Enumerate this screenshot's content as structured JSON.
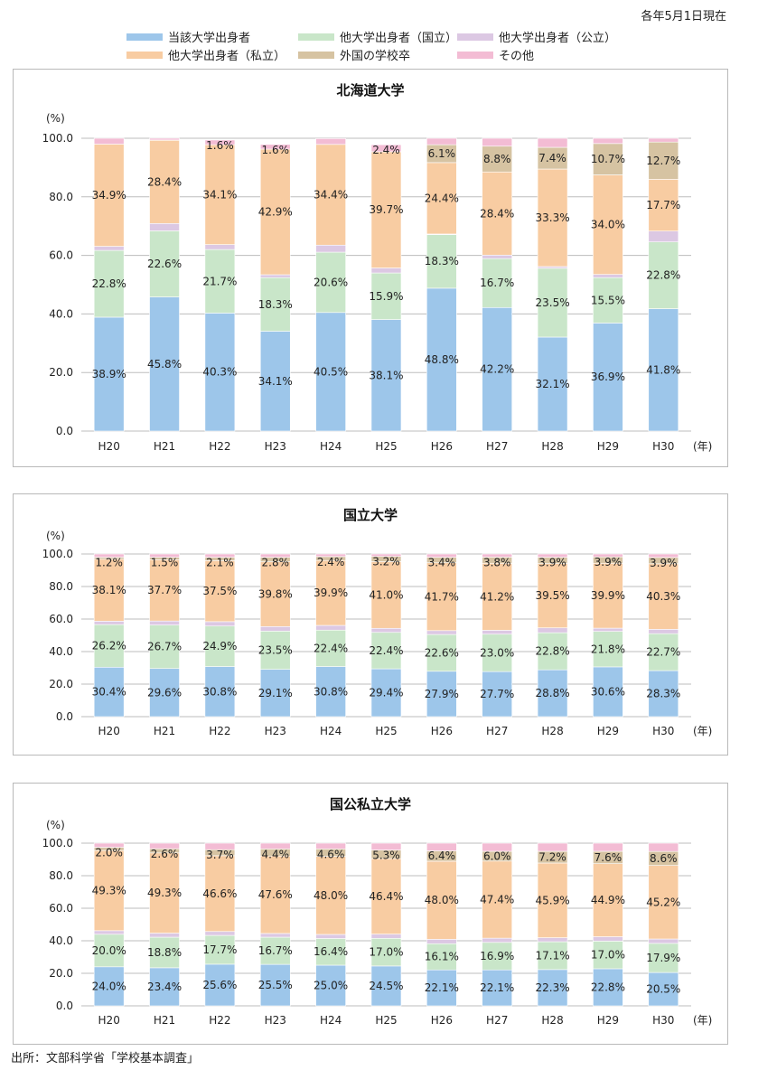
{
  "note": "各年5月1日現在",
  "source": "出所：文部科学省「学校基本調査」",
  "legend": [
    {
      "label": "当該大学出身者",
      "color": "#9dc6ea"
    },
    {
      "label": "他大学出身者（国立）",
      "color": "#c9e6c9"
    },
    {
      "label": "他大学出身者（公立）",
      "color": "#dcc8e3"
    },
    {
      "label": "他大学出身者（私立）",
      "color": "#f8cca2"
    },
    {
      "label": "外国の学校卒",
      "color": "#d6c3a2"
    },
    {
      "label": "その他",
      "color": "#f3bcd4"
    }
  ],
  "chart_data": [
    {
      "type": "bar",
      "stacked": true,
      "title": "北海道大学",
      "ylabel": "(%)",
      "xunit": "(年)",
      "ylim": [
        0,
        100
      ],
      "yticks": [
        "0.0",
        "20.0",
        "40.0",
        "60.0",
        "80.0",
        "100.0"
      ],
      "categories": [
        "H20",
        "H21",
        "H22",
        "H23",
        "H24",
        "H25",
        "H26",
        "H27",
        "H28",
        "H29",
        "H30"
      ],
      "series": [
        {
          "name": "当該大学出身者",
          "values": [
            38.9,
            45.8,
            40.3,
            34.1,
            40.5,
            38.1,
            48.8,
            42.2,
            32.1,
            36.9,
            41.8
          ]
        },
        {
          "name": "他大学出身者（国立）",
          "values": [
            22.8,
            22.6,
            21.7,
            18.3,
            20.6,
            15.9,
            18.3,
            16.7,
            23.5,
            15.5,
            22.8
          ]
        },
        {
          "name": "他大学出身者（公立）",
          "values": [
            1.4,
            2.5,
            1.7,
            1.0,
            2.4,
            1.7,
            0.2,
            1.2,
            0.6,
            1.1,
            3.7
          ]
        },
        {
          "name": "他大学出身者（私立）",
          "values": [
            34.9,
            28.4,
            34.1,
            42.9,
            34.4,
            39.7,
            24.4,
            28.4,
            33.3,
            34.0,
            17.7
          ]
        },
        {
          "name": "外国の学校卒",
          "values": [
            0.0,
            0.1,
            0.0,
            0.0,
            0.0,
            0.0,
            6.1,
            8.8,
            7.4,
            10.7,
            12.7
          ]
        },
        {
          "name": "その他",
          "values": [
            2.0,
            0.6,
            1.6,
            1.6,
            2.0,
            2.4,
            2.2,
            2.7,
            3.1,
            1.8,
            1.3
          ]
        }
      ],
      "labels": [
        [
          "38.9%",
          "45.8%",
          "40.3%",
          "34.1%",
          "40.5%",
          "38.1%",
          "48.8%",
          "42.2%",
          "32.1%",
          "36.9%",
          "41.8%"
        ],
        [
          "22.8%",
          "22.6%",
          "21.7%",
          "18.3%",
          "20.6%",
          "15.9%",
          "18.3%",
          "16.7%",
          "23.5%",
          "15.5%",
          "22.8%"
        ],
        [
          "",
          "",
          "",
          "",
          "",
          "",
          "",
          "",
          "",
          "",
          ""
        ],
        [
          "34.9%",
          "28.4%",
          "34.1%",
          "42.9%",
          "34.4%",
          "39.7%",
          "24.4%",
          "28.4%",
          "33.3%",
          "34.0%",
          "17.7%"
        ],
        [
          "",
          "",
          "",
          "",
          "",
          "",
          "6.1%",
          "8.8%",
          "7.4%",
          "10.7%",
          "12.7%"
        ],
        [
          "",
          "",
          "1.6%",
          "1.6%",
          "",
          "2.4%",
          "",
          "",
          "",
          "",
          ""
        ]
      ]
    },
    {
      "type": "bar",
      "stacked": true,
      "title": "国立大学",
      "ylabel": "(%)",
      "xunit": "(年)",
      "ylim": [
        0,
        100
      ],
      "yticks": [
        "0.0",
        "20.0",
        "40.0",
        "60.0",
        "80.0",
        "100.0"
      ],
      "categories": [
        "H20",
        "H21",
        "H22",
        "H23",
        "H24",
        "H25",
        "H26",
        "H27",
        "H28",
        "H29",
        "H30"
      ],
      "series": [
        {
          "name": "当該大学出身者",
          "values": [
            30.4,
            29.6,
            30.8,
            29.1,
            30.8,
            29.4,
            27.9,
            27.7,
            28.8,
            30.6,
            28.3
          ]
        },
        {
          "name": "他大学出身者（国立）",
          "values": [
            26.2,
            26.7,
            24.9,
            23.5,
            22.4,
            22.4,
            22.6,
            23.0,
            22.8,
            21.8,
            22.7
          ]
        },
        {
          "name": "他大学出身者（公立）",
          "values": [
            2.1,
            2.5,
            2.7,
            2.8,
            2.9,
            2.5,
            2.4,
            2.4,
            3.0,
            2.0,
            2.7
          ]
        },
        {
          "name": "他大学出身者（私立）",
          "values": [
            38.1,
            37.7,
            37.5,
            39.8,
            39.9,
            41.0,
            41.7,
            41.2,
            39.5,
            39.9,
            40.3
          ]
        },
        {
          "name": "外国の学校卒",
          "values": [
            1.2,
            1.5,
            2.1,
            2.8,
            2.4,
            3.2,
            3.4,
            3.8,
            3.9,
            3.9,
            3.9
          ]
        },
        {
          "name": "その他",
          "values": [
            2.0,
            2.0,
            2.0,
            2.0,
            1.6,
            1.5,
            2.0,
            1.9,
            2.0,
            1.8,
            2.1
          ]
        }
      ],
      "labels": [
        [
          "30.4%",
          "29.6%",
          "30.8%",
          "29.1%",
          "30.8%",
          "29.4%",
          "27.9%",
          "27.7%",
          "28.8%",
          "30.6%",
          "28.3%"
        ],
        [
          "26.2%",
          "26.7%",
          "24.9%",
          "23.5%",
          "22.4%",
          "22.4%",
          "22.6%",
          "23.0%",
          "22.8%",
          "21.8%",
          "22.7%"
        ],
        [
          "",
          "",
          "",
          "",
          "",
          "",
          "",
          "",
          "",
          "",
          ""
        ],
        [
          "38.1%",
          "37.7%",
          "37.5%",
          "39.8%",
          "39.9%",
          "41.0%",
          "41.7%",
          "41.2%",
          "39.5%",
          "39.9%",
          "40.3%"
        ],
        [
          "1.2%",
          "1.5%",
          "2.1%",
          "2.8%",
          "2.4%",
          "3.2%",
          "3.4%",
          "3.8%",
          "3.9%",
          "3.9%",
          "3.9%"
        ],
        [
          "",
          "",
          "",
          "",
          "",
          "",
          "",
          "",
          "",
          "",
          ""
        ]
      ]
    },
    {
      "type": "bar",
      "stacked": true,
      "title": "国公私立大学",
      "ylabel": "(%)",
      "xunit": "(年)",
      "ylim": [
        0,
        100
      ],
      "yticks": [
        "0.0",
        "20.0",
        "40.0",
        "60.0",
        "80.0",
        "100.0"
      ],
      "categories": [
        "H20",
        "H21",
        "H22",
        "H23",
        "H24",
        "H25",
        "H26",
        "H27",
        "H28",
        "H29",
        "H30"
      ],
      "series": [
        {
          "name": "当該大学出身者",
          "values": [
            24.0,
            23.4,
            25.6,
            25.5,
            25.0,
            24.5,
            22.1,
            22.1,
            22.3,
            22.8,
            20.5
          ]
        },
        {
          "name": "他大学出身者（国立）",
          "values": [
            20.0,
            18.8,
            17.7,
            16.7,
            16.4,
            17.0,
            16.1,
            16.9,
            17.1,
            17.0,
            17.9
          ]
        },
        {
          "name": "他大学出身者（公立）",
          "values": [
            2.2,
            2.5,
            2.4,
            2.3,
            2.5,
            2.6,
            2.7,
            2.6,
            2.5,
            2.7,
            2.7
          ]
        },
        {
          "name": "他大学出身者（私立）",
          "values": [
            49.3,
            49.3,
            46.6,
            47.6,
            48.0,
            46.4,
            48.0,
            47.4,
            45.9,
            44.9,
            45.2
          ]
        },
        {
          "name": "外国の学校卒",
          "values": [
            2.0,
            2.6,
            3.7,
            4.4,
            4.6,
            5.3,
            6.4,
            6.0,
            7.2,
            7.6,
            8.6
          ]
        },
        {
          "name": "その他",
          "values": [
            2.5,
            3.4,
            4.0,
            3.5,
            3.5,
            4.2,
            4.7,
            5.0,
            5.0,
            5.0,
            5.1
          ]
        }
      ],
      "labels": [
        [
          "24.0%",
          "23.4%",
          "25.6%",
          "25.5%",
          "25.0%",
          "24.5%",
          "22.1%",
          "22.1%",
          "22.3%",
          "22.8%",
          "20.5%"
        ],
        [
          "20.0%",
          "18.8%",
          "17.7%",
          "16.7%",
          "16.4%",
          "17.0%",
          "16.1%",
          "16.9%",
          "17.1%",
          "17.0%",
          "17.9%"
        ],
        [
          "",
          "",
          "",
          "",
          "",
          "",
          "",
          "",
          "",
          "",
          ""
        ],
        [
          "49.3%",
          "49.3%",
          "46.6%",
          "47.6%",
          "48.0%",
          "46.4%",
          "48.0%",
          "47.4%",
          "45.9%",
          "44.9%",
          "45.2%"
        ],
        [
          "2.0%",
          "2.6%",
          "3.7%",
          "4.4%",
          "4.6%",
          "5.3%",
          "6.4%",
          "6.0%",
          "7.2%",
          "7.6%",
          "8.6%"
        ],
        [
          "",
          "",
          "",
          "",
          "",
          "",
          "",
          "",
          "",
          "",
          ""
        ]
      ]
    }
  ]
}
